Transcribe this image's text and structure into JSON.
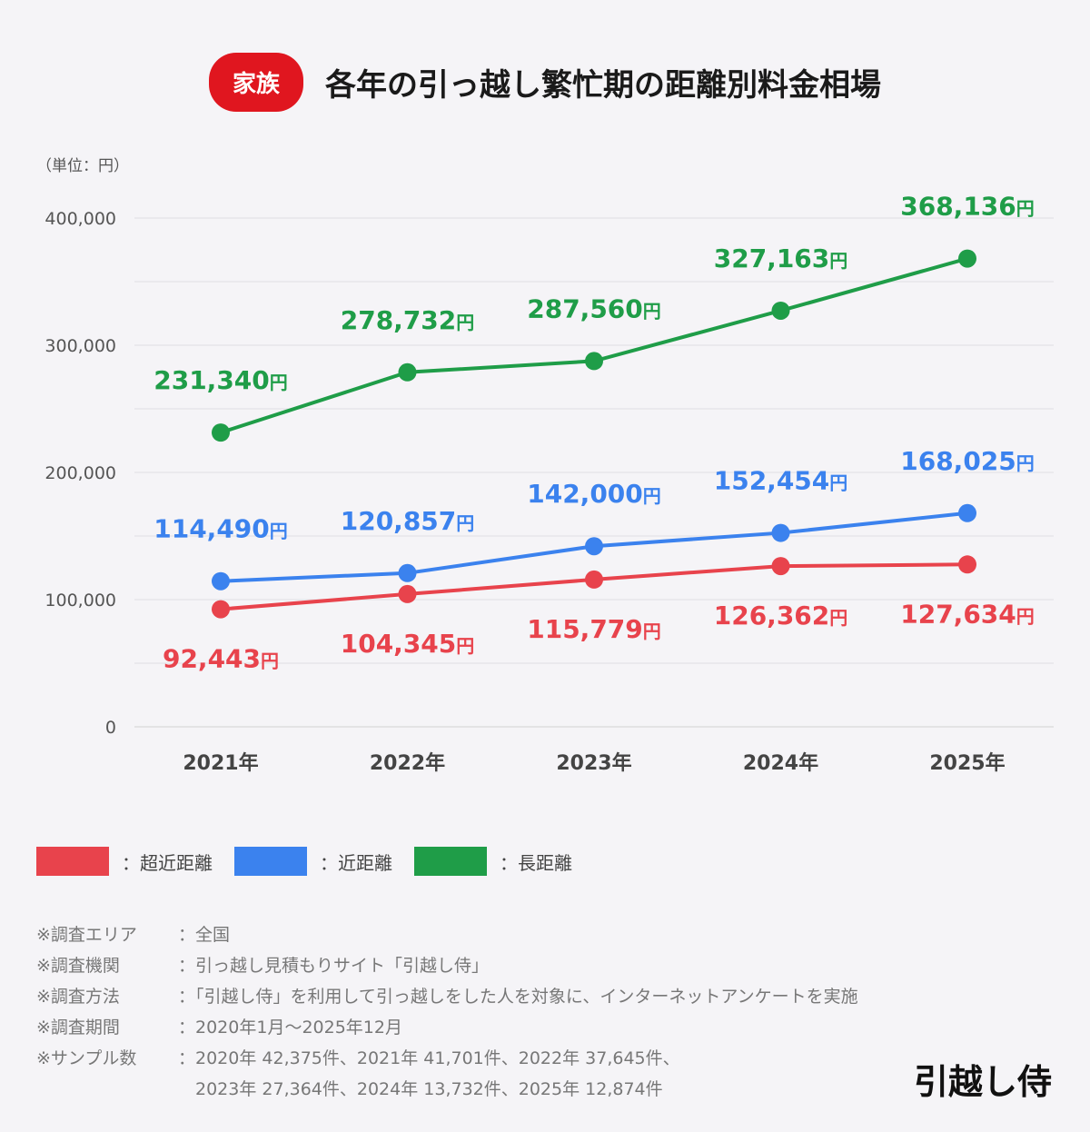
{
  "header": {
    "badge": "家族",
    "title": "各年の引っ越し繁忙期の距離別料金相場"
  },
  "chart_data": {
    "type": "line",
    "unit_label": "（単位：円）",
    "categories": [
      "2021年",
      "2022年",
      "2023年",
      "2024年",
      "2025年"
    ],
    "ylim": [
      0,
      400000
    ],
    "yticks": [
      0,
      100000,
      200000,
      300000,
      400000
    ],
    "ytick_labels": [
      "0",
      "100,000",
      "200,000",
      "300,000",
      "400,000"
    ],
    "grid": true,
    "value_suffix": "円",
    "series": [
      {
        "name": "超近距離",
        "color": "#e8434c",
        "values": [
          92443,
          104345,
          115779,
          126362,
          127634
        ],
        "label_pos": "below"
      },
      {
        "name": "近距離",
        "color": "#3b82ee",
        "values": [
          114490,
          120857,
          142000,
          152454,
          168025
        ],
        "label_pos": "above"
      },
      {
        "name": "長距離",
        "color": "#1f9d48",
        "values": [
          231340,
          278732,
          287560,
          327163,
          368136
        ],
        "label_pos": "above"
      }
    ],
    "legend_position": "bottom-left",
    "legend_prefix": "："
  },
  "notes": [
    {
      "k": "※調査エリア",
      "v": "：全国"
    },
    {
      "k": "※調査機関",
      "v": "：引っ越し見積もりサイト「引越し侍」"
    },
    {
      "k": "※調査方法",
      "v": "：「引越し侍」を利用して引っ越しをした人を対象に、インターネットアンケートを実施"
    },
    {
      "k": "※調査期間",
      "v": "：2020年1月～2025年12月"
    },
    {
      "k": "※サンプル数",
      "v": "：2020年 42,375件、2021年 41,701件、2022年 37,645件、"
    },
    {
      "k": "",
      "v": "　2023年 27,364件、2024年 13,732件、2025年 12,874件"
    }
  ],
  "logo": "引越し侍"
}
